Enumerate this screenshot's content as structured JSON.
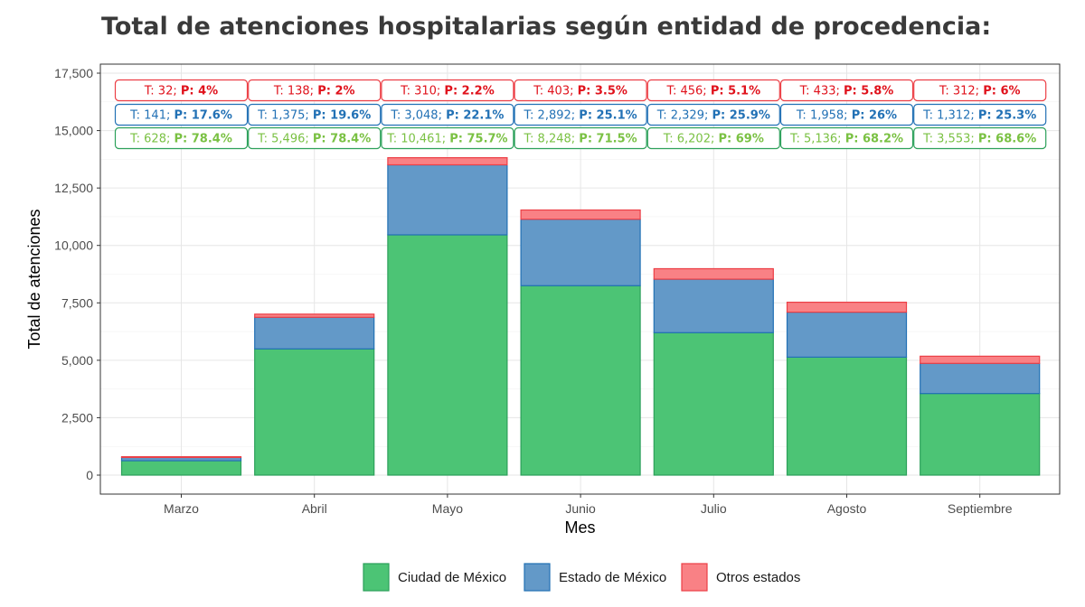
{
  "chart_data": {
    "type": "bar",
    "stacked": true,
    "title": "Total de atenciones hospitalarias según entidad de procedencia:",
    "xlabel": "Mes",
    "ylabel": "Total de atenciones",
    "ylim": [
      0,
      17500
    ],
    "yticks": [
      0,
      2500,
      5000,
      7500,
      10000,
      12500,
      15000,
      17500
    ],
    "ytick_labels": [
      "0",
      "2,500",
      "5,000",
      "7,500",
      "10,000",
      "12,500",
      "15,000",
      "17,500"
    ],
    "grid": true,
    "legend_position": "bottom",
    "categories": [
      "Marzo",
      "Abril",
      "Mayo",
      "Junio",
      "Julio",
      "Agosto",
      "Septiembre"
    ],
    "series": [
      {
        "name": "Ciudad de México",
        "fill": "#4cc475",
        "stroke": "#2ca05a",
        "text_color": "#7ac143",
        "values": [
          628,
          5496,
          10461,
          8248,
          6202,
          5136,
          3553
        ],
        "labels_t": [
          "T: 628;",
          "T: 5,496;",
          "T: 10,461;",
          "T: 8,248;",
          "T: 6,202;",
          "T: 5,136;",
          "T: 3,553;"
        ],
        "labels_p": [
          "P: 78.4%",
          "P: 78.4%",
          "P: 75.7%",
          "P: 71.5%",
          "P: 69%",
          "P: 68.2%",
          "P: 68.6%"
        ]
      },
      {
        "name": "Estado de México",
        "fill": "#6399c8",
        "stroke": "#2271b5",
        "text_color": "#2271b5",
        "values": [
          141,
          1375,
          3048,
          2892,
          2329,
          1958,
          1312
        ],
        "labels_t": [
          "T: 141;",
          "T: 1,375;",
          "T: 3,048;",
          "T: 2,892;",
          "T: 2,329;",
          "T: 1,958;",
          "T: 1,312;"
        ],
        "labels_p": [
          "P: 17.6%",
          "P: 19.6%",
          "P: 22.1%",
          "P: 25.1%",
          "P: 25.9%",
          "P: 26%",
          "P: 25.3%"
        ]
      },
      {
        "name": "Otros estados",
        "fill": "#f98185",
        "stroke": "#ec3f46",
        "text_color": "#e0121c",
        "values": [
          32,
          138,
          310,
          403,
          456,
          433,
          312
        ],
        "labels_t": [
          "T: 32;",
          "T: 138;",
          "T: 310;",
          "T: 403;",
          "T: 456;",
          "T: 433;",
          "T: 312;"
        ],
        "labels_p": [
          "P: 4%",
          "P: 2%",
          "P: 2.2%",
          "P: 3.5%",
          "P: 5.1%",
          "P: 5.8%",
          "P: 6%"
        ]
      }
    ]
  }
}
